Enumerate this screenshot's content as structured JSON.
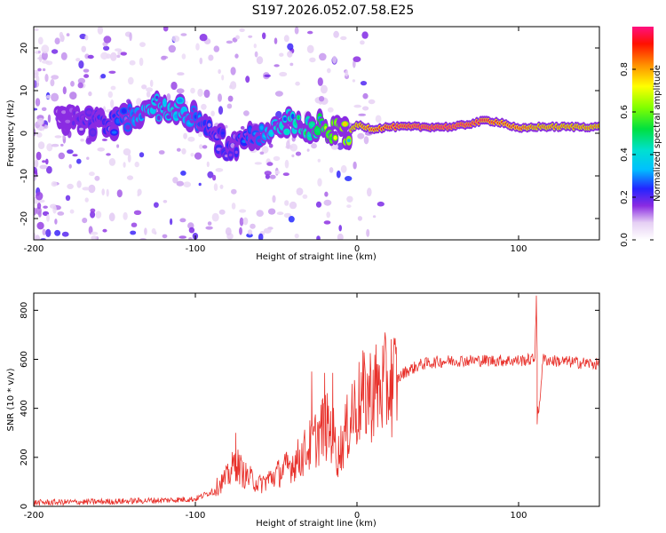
{
  "title": "S197.2026.052.07.58.E25",
  "chart_data": [
    {
      "type": "heatmap",
      "name": "spectrogram",
      "xlabel": "Height of straight line (km)",
      "ylabel": "Frequency (Hz)",
      "xlim": [
        -200,
        150
      ],
      "ylim": [
        -25,
        25
      ],
      "xticks": [
        -200,
        -100,
        0,
        100
      ],
      "xtick_labels": [
        "-200",
        "-100",
        "0",
        "100"
      ],
      "yticks": [
        -20,
        -10,
        0,
        10,
        20
      ],
      "ytick_labels": [
        "-20",
        "-10",
        "0",
        "10",
        "20"
      ],
      "ridge": {
        "x": [
          -175,
          -150,
          -125,
          -110,
          -100,
          -90,
          -80,
          -70,
          -60,
          -50,
          -40,
          -30,
          -20,
          -10,
          -5,
          0,
          10,
          20,
          40,
          60,
          80,
          90,
          100,
          110,
          150
        ],
        "y": [
          3,
          2,
          6,
          6,
          3,
          0,
          -3,
          -2,
          0,
          2,
          3,
          2,
          1,
          0,
          0,
          2,
          1,
          1.5,
          1.5,
          1.5,
          3,
          2.5,
          1,
          1.5,
          1.5
        ],
        "peak_amplitude": [
          0.2,
          0.3,
          0.45,
          0.45,
          0.35,
          0.3,
          0.25,
          0.3,
          0.35,
          0.45,
          0.5,
          0.55,
          0.7,
          0.75,
          0.8,
          0.85,
          0.9,
          0.95,
          1.0,
          1.0,
          0.95,
          0.9,
          0.9,
          0.85,
          0.85
        ]
      },
      "colorbar": {
        "label": "Normalized spectral amplitude",
        "range": [
          0,
          1
        ],
        "ticks": [
          0,
          0.2,
          0.4,
          0.6,
          0.8
        ],
        "tick_labels": [
          "0.0",
          "0.2",
          "0.4",
          "0.6",
          "0.8"
        ]
      }
    },
    {
      "type": "line",
      "name": "snr",
      "xlabel": "Height of straight line (km)",
      "ylabel": "SNR (10 * v/v)",
      "xlim": [
        -200,
        150
      ],
      "ylim": [
        0,
        870
      ],
      "xticks": [
        -200,
        -100,
        0,
        100
      ],
      "xtick_labels": [
        "-200",
        "-100",
        "0",
        "100"
      ],
      "yticks": [
        0,
        200,
        400,
        600,
        800
      ],
      "ytick_labels": [
        "0",
        "200",
        "400",
        "600",
        "800"
      ],
      "color": "#e8302a",
      "envelope": {
        "x": [
          -200,
          -150,
          -120,
          -100,
          -90,
          -80,
          -75,
          -70,
          -60,
          -45,
          -35,
          -25,
          -20,
          -15,
          -12,
          -8,
          -3,
          0,
          5,
          10,
          15,
          20,
          25,
          30,
          40,
          50,
          60,
          80,
          100,
          110,
          111,
          112,
          115,
          120,
          130,
          140,
          150
        ],
        "y": [
          15,
          20,
          25,
          30,
          60,
          120,
          180,
          130,
          90,
          150,
          200,
          280,
          330,
          300,
          200,
          280,
          370,
          410,
          450,
          470,
          480,
          500,
          520,
          550,
          580,
          590,
          595,
          595,
          595,
          600,
          860,
          340,
          600,
          595,
          590,
          585,
          580
        ],
        "spikes": [
          {
            "x": -75,
            "y": 300
          },
          {
            "x": -28,
            "y": 550
          },
          {
            "x": -20,
            "y": 545
          },
          {
            "x": -15,
            "y": 545
          },
          {
            "x": -3,
            "y": 500
          },
          {
            "x": 111,
            "y": 860
          },
          {
            "x": 111.5,
            "y": 335
          }
        ]
      }
    }
  ]
}
